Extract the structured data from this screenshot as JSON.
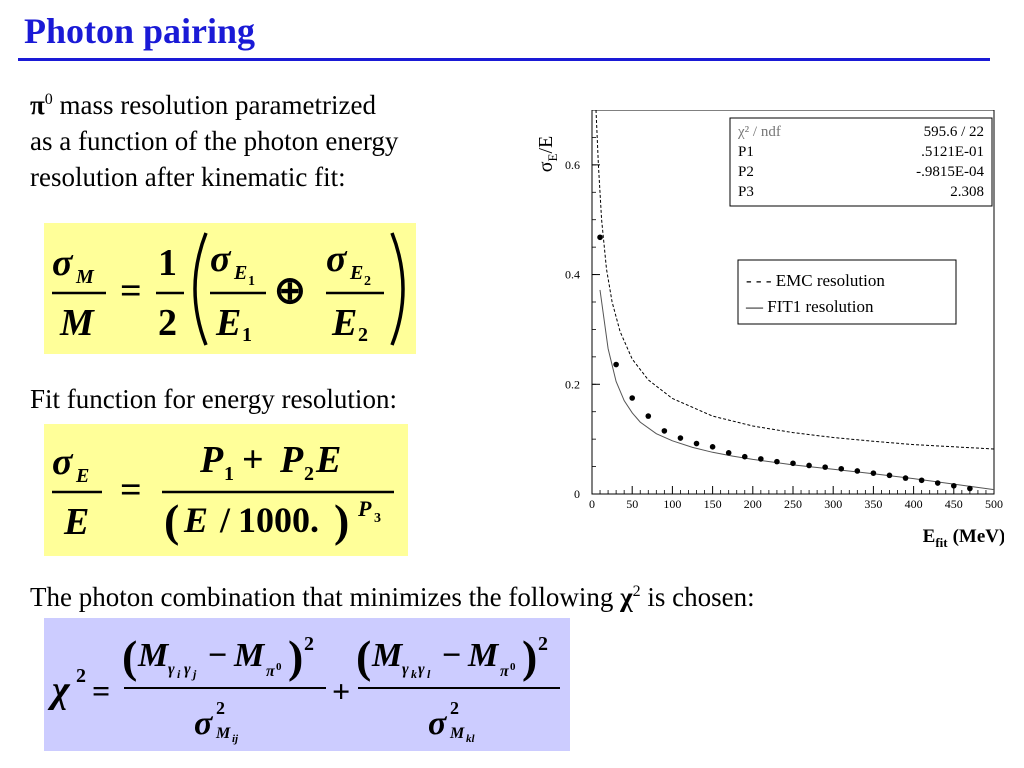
{
  "slide": {
    "title": "Photon pairing",
    "para1": {
      "symbol": "π",
      "superscript": "0",
      "line1": "mass resolution parametrized",
      "line2": "as a function of the photon energy",
      "line3": "resolution after kinematic fit:"
    },
    "para2": "Fit function for energy resolution:",
    "para3": {
      "before": "The photon combination that minimizes the following",
      "symbol": "χ",
      "superscript": "2",
      "after": "is chosen:"
    }
  },
  "formulas": {
    "mass": {
      "sigma": "σ",
      "M": "M",
      "E": "E",
      "eq": "=",
      "oplus": "⊕",
      "one": "1",
      "two": "2",
      "s1": "1",
      "s2": "2"
    },
    "energy": {
      "sigma": "σ",
      "E": "E",
      "eq": "=",
      "P": "P",
      "plus": "+",
      "s1": "1",
      "s2": "2",
      "s3": "3",
      "slash": "/",
      "thousand": "1000.",
      "lp": "(",
      "rp": ")"
    },
    "chi": {
      "chi": "χ",
      "sq": "2",
      "eq": "=",
      "plus": "+",
      "minus": "−",
      "M": "M",
      "sigma": "σ",
      "gamma": "γ",
      "pi": "π",
      "zero": "0",
      "i": "i",
      "j": "j",
      "k": "k",
      "l": "l",
      "ij": "ij",
      "kl": "kl"
    }
  },
  "chart_data": {
    "type": "scatter",
    "ylabel": "σE/E",
    "ylabel_main": "σ",
    "ylabel_sub": "E",
    "ylabel_tail": "/E",
    "xlabel_main": "E",
    "xlabel_sub": "fit",
    "xlabel_unit": "(MeV)",
    "xlim": [
      0,
      500
    ],
    "ylim": [
      0,
      0.7
    ],
    "xticks": [
      0,
      50,
      100,
      150,
      200,
      250,
      300,
      350,
      400,
      450,
      500
    ],
    "yticks": [
      0,
      0.2,
      0.4,
      0.6
    ],
    "ytick_labels": [
      "0",
      "0.2",
      "0.4",
      "0.6"
    ],
    "legend": {
      "placement": "right",
      "entries": [
        "- - - EMC resolution",
        "—  FIT1  resolution"
      ]
    },
    "stats": [
      {
        "name": "χ² / ndf",
        "value": "595.6   /   22"
      },
      {
        "name": "P1",
        "value": ".5121E-01"
      },
      {
        "name": "P2",
        "value": "-.9815E-04"
      },
      {
        "name": "P3",
        "value": "2.308"
      }
    ],
    "points": {
      "x": [
        10,
        30,
        50,
        70,
        90,
        110,
        130,
        150,
        170,
        190,
        210,
        230,
        250,
        270,
        290,
        310,
        330,
        350,
        370,
        390,
        410,
        430,
        450,
        470
      ],
      "y": [
        0.468,
        0.236,
        0.175,
        0.142,
        0.115,
        0.102,
        0.092,
        0.086,
        0.075,
        0.068,
        0.064,
        0.059,
        0.056,
        0.052,
        0.049,
        0.046,
        0.042,
        0.038,
        0.034,
        0.029,
        0.025,
        0.02,
        0.015,
        0.01
      ]
    },
    "fit_curve": {
      "x": [
        10,
        20,
        30,
        40,
        50,
        60,
        80,
        100,
        125,
        150,
        175,
        200,
        250,
        300,
        350,
        400,
        450,
        500
      ],
      "y": [
        0.372,
        0.265,
        0.205,
        0.17,
        0.148,
        0.131,
        0.11,
        0.097,
        0.085,
        0.076,
        0.069,
        0.063,
        0.053,
        0.045,
        0.037,
        0.028,
        0.018,
        0.008
      ]
    },
    "emc_curve": {
      "x": [
        5,
        8,
        12,
        18,
        25,
        35,
        50,
        70,
        100,
        150,
        200,
        250,
        300,
        350,
        400,
        450,
        500
      ],
      "y": [
        0.7,
        0.6,
        0.5,
        0.41,
        0.35,
        0.296,
        0.246,
        0.208,
        0.174,
        0.142,
        0.124,
        0.112,
        0.103,
        0.096,
        0.09,
        0.086,
        0.082
      ]
    }
  }
}
